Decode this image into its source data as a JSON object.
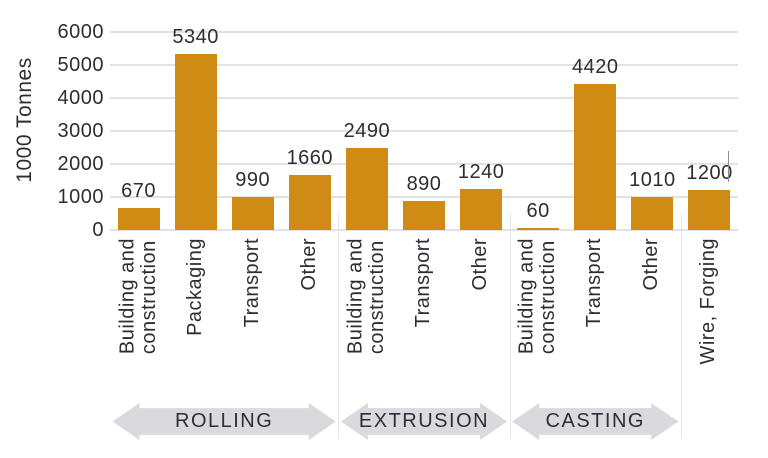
{
  "chart_data": {
    "type": "bar",
    "title": "",
    "ylabel": "1000 Tonnes",
    "xlabel": "",
    "y_ticks": [
      0,
      1000,
      2000,
      3000,
      4000,
      5000,
      6000
    ],
    "ylim": [
      0,
      6000
    ],
    "grid": "horizontal",
    "legend": "none",
    "bar_color": "#CF8B14",
    "text_color": "#2D2D35",
    "grid_color": "#E2E2E2",
    "arrow_color": "#D9D9DE",
    "groups": [
      {
        "name": "ROLLING",
        "show_arrow": true,
        "bars": [
          {
            "label": "Building and\nconstruction",
            "value": 670,
            "value_label": "670"
          },
          {
            "label": "Packaging",
            "value": 5340,
            "value_label": "5340"
          },
          {
            "label": "Transport",
            "value": 990,
            "value_label": "990"
          },
          {
            "label": "Other",
            "value": 1660,
            "value_label": "1660"
          }
        ]
      },
      {
        "name": "EXTRUSION",
        "show_arrow": true,
        "bars": [
          {
            "label": "Building and\nconstruction",
            "value": 2490,
            "value_label": "2490"
          },
          {
            "label": "Transport",
            "value": 890,
            "value_label": "890"
          },
          {
            "label": "Other",
            "value": 1240,
            "value_label": "1240"
          }
        ]
      },
      {
        "name": "CASTING",
        "show_arrow": true,
        "bars": [
          {
            "label": "Building and\nconstruction",
            "value": 60,
            "value_label": "60"
          },
          {
            "label": "Transport",
            "value": 4420,
            "value_label": "4420"
          },
          {
            "label": "Other",
            "value": 1010,
            "value_label": "1010"
          }
        ]
      },
      {
        "name": "",
        "show_arrow": false,
        "bars": [
          {
            "label": "Wire, Forging",
            "value": 1200,
            "value_label": "1200"
          }
        ]
      }
    ]
  }
}
